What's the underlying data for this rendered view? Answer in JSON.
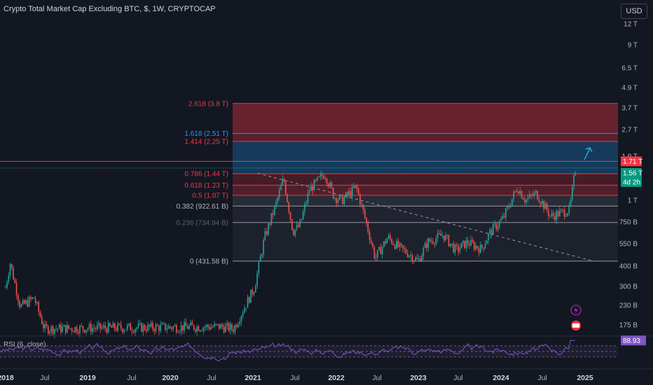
{
  "header": {
    "title": "Crypto Total Market Cap Excluding BTC, $, 1W, CRYPTOCAP",
    "currency_button": "USD",
    "rsi_label": "RSI (6, close)"
  },
  "colors": {
    "background": "#131722",
    "up": "#26a69a",
    "down": "#ef5350",
    "rsi": "#7e57c2",
    "fib_red": "#f23645",
    "fib_blue": "#2196f3",
    "fib_gray": "#787b86",
    "current_price_tag": "#089981",
    "high_tag": "#f23645",
    "arrow": "#26c6da"
  },
  "chart_data": {
    "type": "candlestick",
    "title": "Crypto Total Market Cap Excluding BTC, $, 1W, CRYPTOCAP",
    "y_scale": "log",
    "y_unit": "USD",
    "y_ticks": [
      "12 T",
      "9 T",
      "6.5 T",
      "4.9 T",
      "3.7 T",
      "2.7 T",
      "1.9 T",
      "1 T",
      "750 B",
      "550 B",
      "400 B",
      "300 B",
      "230 B",
      "175 B"
    ],
    "x_ticks": [
      {
        "label": "2018",
        "bold": true
      },
      {
        "label": "Jul",
        "bold": false
      },
      {
        "label": "2019",
        "bold": true
      },
      {
        "label": "Jul",
        "bold": false
      },
      {
        "label": "2020",
        "bold": true
      },
      {
        "label": "Jul",
        "bold": false
      },
      {
        "label": "2021",
        "bold": true
      },
      {
        "label": "Jul",
        "bold": false
      },
      {
        "label": "2022",
        "bold": true
      },
      {
        "label": "Jul",
        "bold": false
      },
      {
        "label": "2023",
        "bold": true
      },
      {
        "label": "Jul",
        "bold": false
      },
      {
        "label": "2024",
        "bold": true
      },
      {
        "label": "Jul",
        "bold": false
      },
      {
        "label": "2025",
        "bold": true
      }
    ],
    "price_path": [
      {
        "date": "2017-12-25",
        "value": 300
      },
      {
        "date": "2018-01-15",
        "value": 420
      },
      {
        "date": "2018-03-01",
        "value": 230
      },
      {
        "date": "2018-05-01",
        "value": 260
      },
      {
        "date": "2018-06-15",
        "value": 170
      },
      {
        "date": "2020-08-01",
        "value": 175
      },
      {
        "date": "2020-10-01",
        "value": 170
      },
      {
        "date": "2021-01-01",
        "value": 300
      },
      {
        "date": "2021-02-15",
        "value": 600
      },
      {
        "date": "2021-04-01",
        "value": 900
      },
      {
        "date": "2021-05-10",
        "value": 1350
      },
      {
        "date": "2021-06-20",
        "value": 650
      },
      {
        "date": "2021-07-20",
        "value": 700
      },
      {
        "date": "2021-09-01",
        "value": 1150
      },
      {
        "date": "2021-11-08",
        "value": 1450
      },
      {
        "date": "2021-12-20",
        "value": 1050
      },
      {
        "date": "2022-01-24",
        "value": 1000
      },
      {
        "date": "2022-03-28",
        "value": 1200
      },
      {
        "date": "2022-05-09",
        "value": 750
      },
      {
        "date": "2022-06-20",
        "value": 450
      },
      {
        "date": "2022-08-15",
        "value": 600
      },
      {
        "date": "2022-10-03",
        "value": 520
      },
      {
        "date": "2022-11-14",
        "value": 480
      },
      {
        "date": "2022-12-26",
        "value": 430
      },
      {
        "date": "2023-02-06",
        "value": 560
      },
      {
        "date": "2023-04-17",
        "value": 620
      },
      {
        "date": "2023-06-12",
        "value": 500
      },
      {
        "date": "2023-08-01",
        "value": 560
      },
      {
        "date": "2023-10-02",
        "value": 510
      },
      {
        "date": "2023-11-13",
        "value": 650
      },
      {
        "date": "2024-01-08",
        "value": 780
      },
      {
        "date": "2024-03-11",
        "value": 1200
      },
      {
        "date": "2024-04-15",
        "value": 1000
      },
      {
        "date": "2024-06-03",
        "value": 1100
      },
      {
        "date": "2024-08-05",
        "value": 800
      },
      {
        "date": "2024-09-30",
        "value": 850
      },
      {
        "date": "2024-10-28",
        "value": 880
      },
      {
        "date": "2024-11-18",
        "value": 1400
      },
      {
        "date": "2024-11-25",
        "value": 1560
      }
    ],
    "fib_levels": [
      {
        "label": "2.618 (3.8 T)",
        "value_t": 3.8,
        "color": "#f23645"
      },
      {
        "label": "1.618 (2.51 T)",
        "value_t": 2.51,
        "color": "#2196f3"
      },
      {
        "label": "1.414 (2.25 T)",
        "value_t": 2.25,
        "color": "#f23645"
      },
      {
        "label": "0.786 (1.44 T)",
        "value_t": 1.44,
        "color": "#f23645"
      },
      {
        "label": "0.618 (1.23 T)",
        "value_t": 1.23,
        "color": "#f23645"
      },
      {
        "label": "0.5 (1.07 T)",
        "value_t": 1.07,
        "color": "#f23645"
      },
      {
        "label": "0.382 (922.61 B)",
        "value_t": 0.92261,
        "color": "#b2b5be"
      },
      {
        "label": "0.236 (734.94 B)",
        "value_t": 0.73494,
        "color": "#5d606b"
      },
      {
        "label": "0 (431.58 B)",
        "value_t": 0.43158,
        "color": "#b2b5be"
      }
    ],
    "price_tags": {
      "high": "1.71 T",
      "current": "1.56 T",
      "countdown": "4d 2h"
    },
    "trendline": {
      "from": {
        "date": "2021-01-15",
        "value_t": 1.45
      },
      "to": {
        "date": "2025-02-15",
        "value_t": 0.43
      }
    },
    "rsi": {
      "label": "RSI (6, close)",
      "value": "88.93",
      "upper_band": 70,
      "lower_band": 30
    }
  }
}
